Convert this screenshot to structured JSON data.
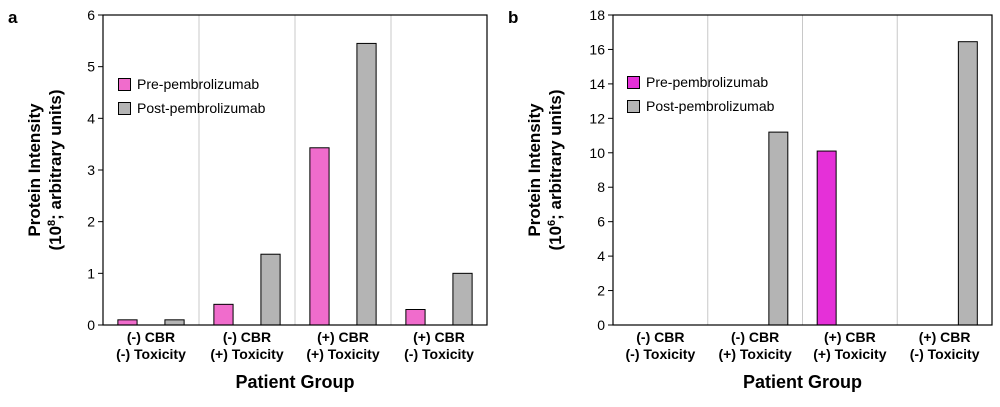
{
  "chart_data": [
    {
      "panel": "a",
      "type": "bar",
      "categories": [
        [
          "(-) CBR",
          "(-) Toxicity"
        ],
        [
          "(-) CBR",
          "(+) Toxicity"
        ],
        [
          "(+) CBR",
          "(+) Toxicity"
        ],
        [
          "(+) CBR",
          "(-) Toxicity"
        ]
      ],
      "series": [
        {
          "name": "Pre-pembrolizumab",
          "color": "#f06ccc",
          "values": [
            0.1,
            0.4,
            3.43,
            0.3
          ]
        },
        {
          "name": "Post-pembrolizumab",
          "color": "#b4b4b4",
          "values": [
            0.1,
            1.37,
            5.45,
            1.0
          ]
        }
      ],
      "xlabel": "Patient Group",
      "ylabel": [
        "Protein Intensity",
        "(10",
        "8",
        "; arbitrary units)"
      ],
      "ylim": [
        0,
        6
      ],
      "yticks": [
        0,
        1,
        2,
        3,
        4,
        5,
        6
      ],
      "legend": "upper-left",
      "grid": false
    },
    {
      "panel": "b",
      "type": "bar",
      "categories": [
        [
          "(-) CBR",
          "(-) Toxicity"
        ],
        [
          "(-) CBR",
          "(+) Toxicity"
        ],
        [
          "(+) CBR",
          "(+) Toxicity"
        ],
        [
          "(+) CBR",
          "(-) Toxicity"
        ]
      ],
      "series": [
        {
          "name": "Pre-pembrolizumab",
          "color": "#e530d8",
          "values": [
            0,
            0,
            10.1,
            0
          ]
        },
        {
          "name": "Post-pembrolizumab",
          "color": "#b4b4b4",
          "values": [
            0,
            11.2,
            0,
            16.45
          ]
        }
      ],
      "xlabel": "Patient Group",
      "ylabel": [
        "Protein Intensity",
        "(10",
        "6",
        "; arbitrary units)"
      ],
      "ylim": [
        0,
        18
      ],
      "yticks": [
        0,
        2,
        4,
        6,
        8,
        10,
        12,
        14,
        16,
        18
      ],
      "legend": "upper-left",
      "grid": false
    }
  ]
}
